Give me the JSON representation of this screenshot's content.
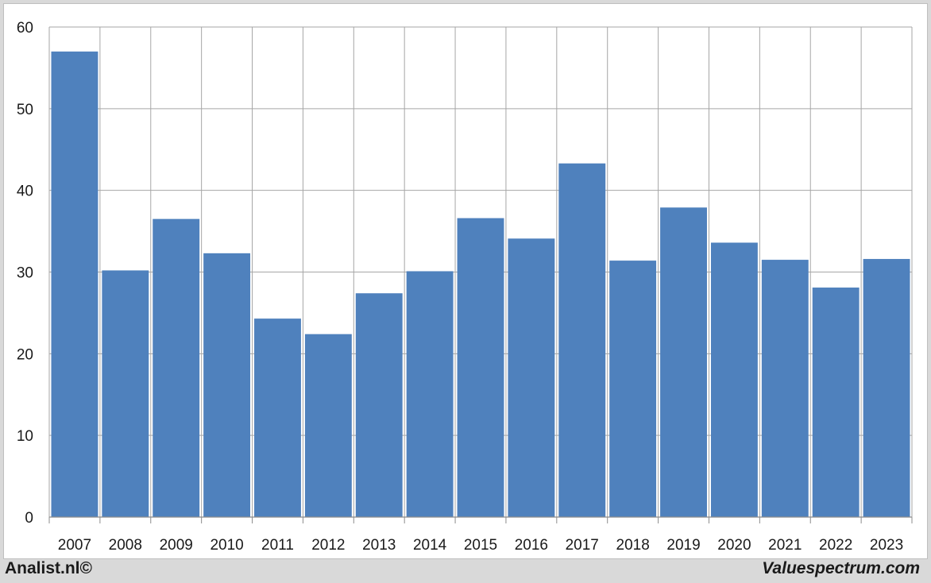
{
  "footer": {
    "left": "Analist.nl©",
    "right": "Valuespectrum.com"
  },
  "chart_data": {
    "type": "bar",
    "categories": [
      "2007",
      "2008",
      "2009",
      "2010",
      "2011",
      "2012",
      "2013",
      "2014",
      "2015",
      "2016",
      "2017",
      "2018",
      "2019",
      "2020",
      "2021",
      "2022",
      "2023"
    ],
    "values": [
      57.0,
      30.2,
      36.5,
      32.3,
      24.3,
      22.4,
      27.4,
      30.1,
      36.6,
      34.1,
      43.3,
      31.4,
      37.9,
      33.6,
      31.5,
      28.1,
      31.6
    ],
    "title": "",
    "xlabel": "",
    "ylabel": "",
    "ylim": [
      0,
      60
    ],
    "yticks": [
      0,
      10,
      20,
      30,
      40,
      50,
      60
    ],
    "grid": true,
    "legend": "none",
    "bar_color": "#4f81bd",
    "grid_color": "#a6a6a6"
  }
}
